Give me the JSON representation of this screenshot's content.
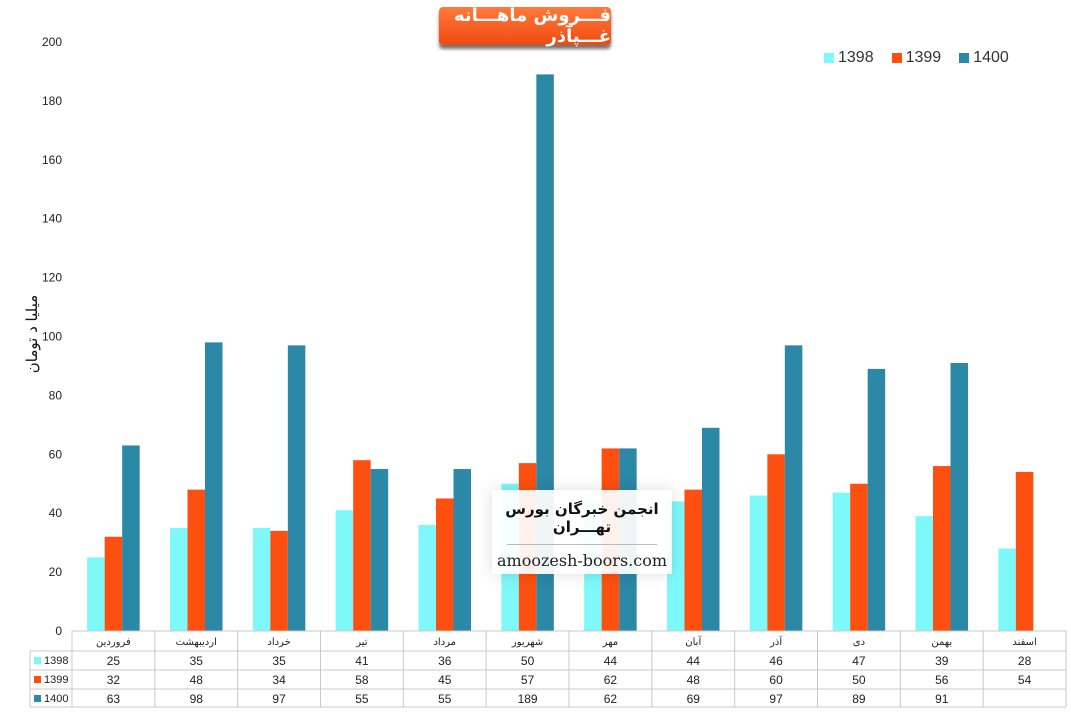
{
  "chart_data": {
    "type": "bar",
    "title": "فـــروش ماهـــانه غـــپآذر",
    "ylabel": "میلیا د تومان",
    "ylim": [
      0,
      200
    ],
    "yticks": [
      0,
      20,
      40,
      60,
      80,
      100,
      120,
      140,
      160,
      180,
      200
    ],
    "legend_position": "top-right",
    "grid": false,
    "categories": [
      "فروردین",
      "اردیبهشت",
      "خرداد",
      "تیر",
      "مرداد",
      "شهریور",
      "مهر",
      "آبان",
      "آذر",
      "دی",
      "بهمن",
      "اسفند"
    ],
    "series": [
      {
        "name": "1398",
        "color": "#7ff8fa",
        "values": [
          25,
          35,
          35,
          41,
          36,
          50,
          44,
          44,
          46,
          47,
          39,
          28
        ]
      },
      {
        "name": "1399",
        "color": "#fd4f10",
        "values": [
          32,
          48,
          34,
          58,
          45,
          57,
          62,
          48,
          60,
          50,
          56,
          54
        ]
      },
      {
        "name": "1400",
        "color": "#2b88a6",
        "values": [
          63,
          98,
          97,
          55,
          55,
          189,
          62,
          69,
          97,
          89,
          91,
          null
        ]
      }
    ]
  },
  "watermark": {
    "title": "انجمن خبرگان بورس تهـــران",
    "site": "amoozesh-boors.com"
  }
}
